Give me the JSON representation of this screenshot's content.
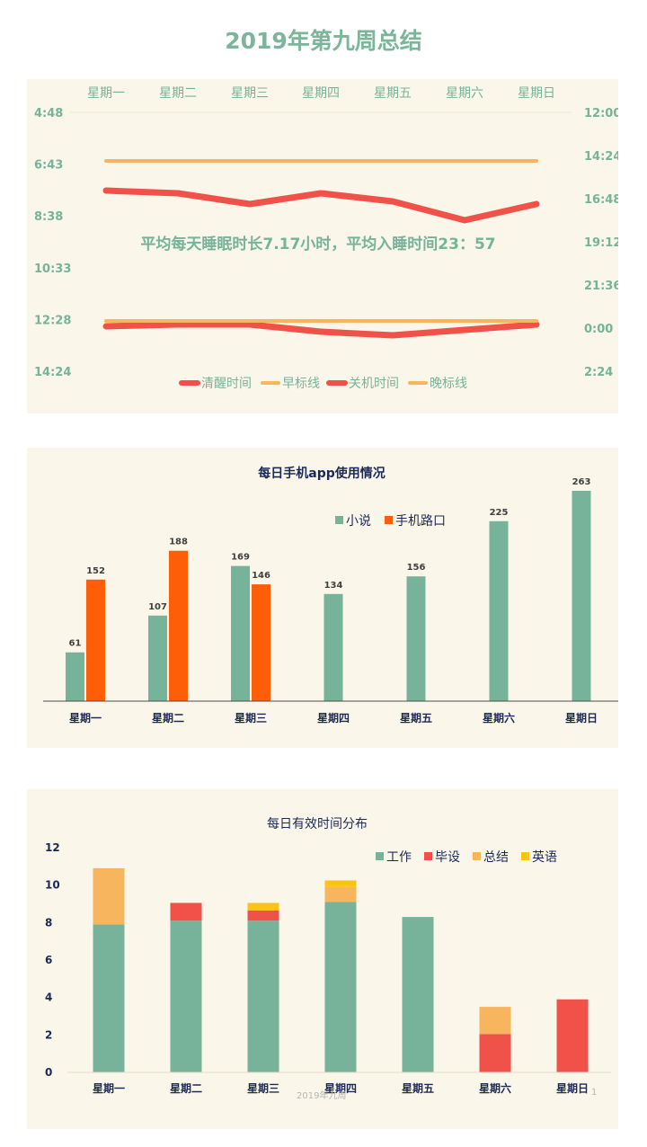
{
  "page_title": "2019年第九周总结",
  "footer": {
    "left": "2019年九周",
    "right": "1"
  },
  "colors": {
    "green": "#77b39a",
    "orange": "#fe5e07",
    "red": "#f0524a",
    "light_orange": "#f7b55e",
    "yellow": "#fbc315",
    "navy": "#1c2956",
    "panel": "#faf7ea"
  },
  "chart_data": [
    {
      "type": "line",
      "title": "",
      "categories": [
        "星期一",
        "星期二",
        "星期三",
        "星期四",
        "星期五",
        "星期六",
        "星期日"
      ],
      "annotation": "平均每天睡眠时长7.17小时，平均入睡时间23：57",
      "left_axis": {
        "ticks": [
          "4:48",
          "6:43",
          "8:38",
          "10:33",
          "12:28",
          "14:24"
        ],
        "range": [
          4.8,
          14.4
        ],
        "reversed": true
      },
      "right_axis": {
        "ticks": [
          "12:00",
          "14:24",
          "16:48",
          "19:12",
          "21:36",
          "0:00",
          "2:24"
        ],
        "range": [
          12.0,
          26.4
        ],
        "reversed": true
      },
      "series": [
        {
          "name": "清醒时间",
          "axis": "left",
          "color": "#f0524a",
          "values": [
            7.7,
            7.8,
            8.2,
            7.8,
            8.1,
            8.8,
            8.2
          ]
        },
        {
          "name": "早标线",
          "axis": "left",
          "color": "#f7b55e",
          "values": [
            6.6,
            6.6,
            6.6,
            6.6,
            6.6,
            6.6,
            6.6
          ]
        },
        {
          "name": "关机时间",
          "axis": "right",
          "color": "#f0524a",
          "values": [
            23.9,
            23.8,
            23.8,
            24.2,
            24.4,
            24.1,
            23.8
          ]
        },
        {
          "name": "晚标线",
          "axis": "right",
          "color": "#f7b55e",
          "values": [
            23.6,
            23.6,
            23.6,
            23.6,
            23.6,
            23.6,
            23.6
          ]
        }
      ],
      "legend": "bottom"
    },
    {
      "type": "bar",
      "title": "每日手机app使用情况",
      "categories": [
        "星期一",
        "星期二",
        "星期三",
        "星期四",
        "星期五",
        "星期六",
        "星期日"
      ],
      "series": [
        {
          "name": "小说",
          "color": "#77b39a",
          "values": [
            61,
            107,
            169,
            134,
            156,
            225,
            263
          ]
        },
        {
          "name": "手机路口",
          "color": "#fe5e07",
          "values": [
            152,
            188,
            146,
            null,
            null,
            null,
            null
          ]
        }
      ],
      "data_labels": true,
      "ylim": [
        0,
        263
      ],
      "legend": "top-right"
    },
    {
      "type": "bar",
      "stacked": true,
      "title": "每日有效时间分布",
      "categories": [
        "星期一",
        "星期二",
        "星期三",
        "星期四",
        "星期五",
        "星期六",
        "星期日"
      ],
      "yticks": [
        "0",
        "2",
        "4",
        "6",
        "8",
        "10",
        "12"
      ],
      "ylim": [
        0,
        12
      ],
      "series": [
        {
          "name": "工作",
          "color": "#77b39a",
          "values": [
            7.9,
            8.1,
            8.1,
            9.1,
            8.3,
            0,
            0
          ]
        },
        {
          "name": "毕设",
          "color": "#f0524a",
          "values": [
            0,
            0.95,
            0.55,
            0,
            0,
            2.05,
            3.9
          ]
        },
        {
          "name": "总结",
          "color": "#f7b55e",
          "values": [
            3.0,
            0,
            0,
            0.8,
            0,
            1.45,
            0
          ]
        },
        {
          "name": "英语",
          "color": "#fbc315",
          "values": [
            0,
            0,
            0.4,
            0.35,
            0,
            0,
            0
          ]
        }
      ],
      "legend": "top-right"
    }
  ]
}
